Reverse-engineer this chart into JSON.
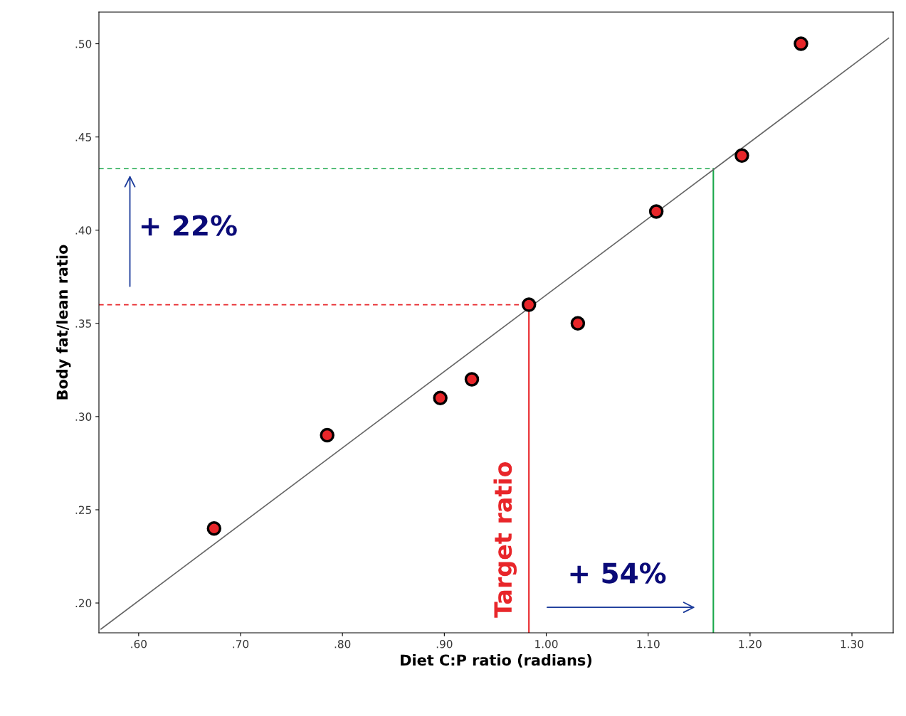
{
  "chart_data": {
    "type": "scatter",
    "xlabel": "Diet C:P ratio (radians)",
    "ylabel": "Body fat/lean ratio",
    "xlim": [
      0.561,
      1.3405
    ],
    "ylim": [
      0.184,
      0.517
    ],
    "xticks": [
      {
        "value": 0.6,
        "label": ".60"
      },
      {
        "value": 0.7,
        "label": ".70"
      },
      {
        "value": 0.8,
        "label": ".80"
      },
      {
        "value": 0.9,
        "label": ".90"
      },
      {
        "value": 1.0,
        "label": "1.00"
      },
      {
        "value": 1.1,
        "label": "1.10"
      },
      {
        "value": 1.2,
        "label": "1.20"
      },
      {
        "value": 1.3,
        "label": "1.30"
      }
    ],
    "yticks": [
      {
        "value": 0.2,
        "label": ".20"
      },
      {
        "value": 0.25,
        "label": ".25"
      },
      {
        "value": 0.3,
        "label": ".30"
      },
      {
        "value": 0.35,
        "label": ".35"
      },
      {
        "value": 0.4,
        "label": ".40"
      },
      {
        "value": 0.45,
        "label": ".45"
      },
      {
        "value": 0.5,
        "label": ".50"
      }
    ],
    "grid": false,
    "marker": "circle",
    "series": [
      {
        "color": "#e8262a",
        "x": [
          0.674,
          0.785,
          0.896,
          0.927,
          0.983,
          1.031,
          1.108,
          1.192,
          1.25
        ],
        "values": [
          0.24,
          0.29,
          0.31,
          0.32,
          0.36,
          0.35,
          0.41,
          0.44,
          0.5
        ]
      },
      {
        "type": "line",
        "marker": "none",
        "color": "#666666",
        "x": [
          0.563,
          1.336
        ],
        "values": [
          0.186,
          0.503
        ]
      }
    ],
    "ref_lines": [
      {
        "axis": "y",
        "value": 0.36,
        "color": "#e8262a",
        "line_style": "dashed"
      },
      {
        "axis": "x",
        "value": 0.983,
        "label": "Target ratio",
        "color": "#e8262a",
        "line_style": "solid"
      },
      {
        "axis": "y",
        "value": 0.433,
        "color": "#1aa84a",
        "line_style": "dashed"
      },
      {
        "axis": "x",
        "value": 1.164,
        "color": "#1aa84a",
        "line_style": "solid"
      }
    ],
    "annotations": [
      "+ 22%",
      "+ 54%"
    ]
  }
}
